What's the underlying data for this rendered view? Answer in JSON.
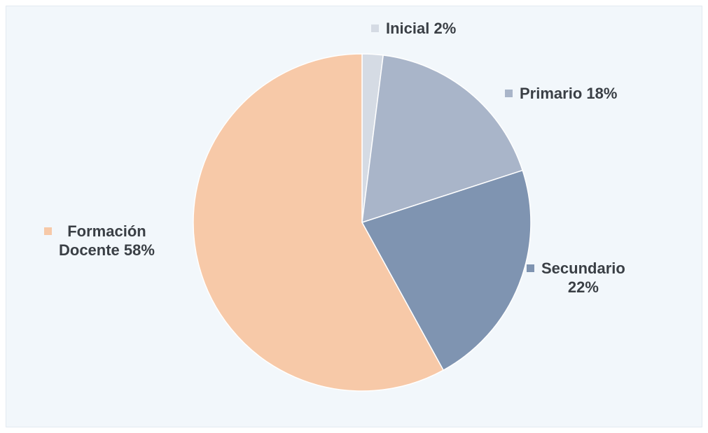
{
  "chart_data": {
    "type": "pie",
    "title": "",
    "start_angle_deg": 0,
    "direction": "clockwise",
    "slices": [
      {
        "label": "Inicial",
        "value": 2,
        "value_label": "2%",
        "color": "#d5dbe4"
      },
      {
        "label": "Primario",
        "value": 18,
        "value_label": "18%",
        "color": "#a9b5c9"
      },
      {
        "label": "Secundario",
        "value": 22,
        "value_label": "22%",
        "color": "#7f94b1"
      },
      {
        "label": "Formación Docente",
        "value": 58,
        "value_label": "58%",
        "color": "#f7c9a8"
      }
    ],
    "legend_placement": "outside, next to each slice"
  },
  "labels": {
    "inicial": "Inicial 2%",
    "primario": "Primario 18%",
    "secundario_line1": "Secundario",
    "secundario_line2": "22%",
    "formacion_line1": "Formación",
    "formacion_line2": "Docente 58%"
  }
}
